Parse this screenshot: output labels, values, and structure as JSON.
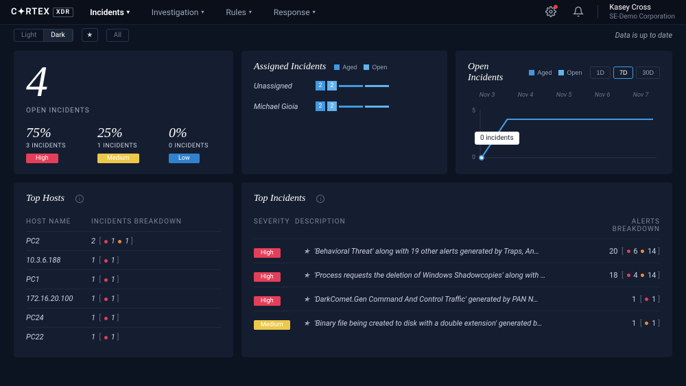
{
  "brand": {
    "name": "C✦RTEX",
    "suffix": "XDR"
  },
  "nav": {
    "items": [
      {
        "label": "Incidents",
        "active": true
      },
      {
        "label": "Investigation",
        "active": false
      },
      {
        "label": "Rules",
        "active": false
      },
      {
        "label": "Response",
        "active": false
      }
    ]
  },
  "user": {
    "name": "Kasey Cross",
    "org": "SE-Demo Corporation"
  },
  "subbar": {
    "light": "Light",
    "dark": "Dark",
    "all": "All",
    "status": "Data is up to date"
  },
  "colors": {
    "aged": "#4299e1",
    "open": "#63b3ed",
    "high": "#e43f5a",
    "medium": "#ecc94b",
    "low": "#3182ce",
    "dot_red": "#e43f5a",
    "dot_orange": "#ed8936"
  },
  "open_summary": {
    "count": "4",
    "label": "OPEN INCIDENTS",
    "severities": [
      {
        "pct": "75%",
        "count": "3 INCIDENTS",
        "badge": "High",
        "color": "#e43f5a"
      },
      {
        "pct": "25%",
        "count": "1 INCIDENTS",
        "badge": "Medium",
        "color": "#ecc94b"
      },
      {
        "pct": "0%",
        "count": "0 INCIDENTS",
        "badge": "Low",
        "color": "#3182ce"
      }
    ]
  },
  "assigned": {
    "title": "Assigned Incidents",
    "legend_aged": "Aged",
    "legend_open": "Open",
    "rows": [
      {
        "name": "Unassigned",
        "aged": "2",
        "open": "2"
      },
      {
        "name": "Michael Gioia",
        "aged": "2",
        "open": "2"
      }
    ]
  },
  "open_chart": {
    "title": "Open Incidents",
    "legend_aged": "Aged",
    "legend_open": "Open",
    "ranges": [
      "1D",
      "7D",
      "30D"
    ],
    "active_range": "7D",
    "x_labels": [
      "Nov 3",
      "Nov 4",
      "Nov 5",
      "Nov 6",
      "Nov 7"
    ],
    "y_max": 5,
    "y_tick": "5",
    "y_zero": "0",
    "series": [
      {
        "x": 0,
        "aged": 0,
        "open": 0
      },
      {
        "x": 15,
        "aged": 4,
        "open": 4
      },
      {
        "x": 35,
        "aged": 4,
        "open": 4
      },
      {
        "x": 55,
        "aged": 4,
        "open": 4
      },
      {
        "x": 75,
        "aged": 4,
        "open": 4
      },
      {
        "x": 100,
        "aged": 4,
        "open": 4
      }
    ],
    "tooltip": "0 incidents"
  },
  "top_hosts": {
    "title": "Top Hosts",
    "col_host": "HOST NAME",
    "col_inc": "INCIDENTS BREAKDOWN",
    "rows": [
      {
        "host": "PC2",
        "total": "2",
        "red": "1",
        "orange": "1"
      },
      {
        "host": "10.3.6.188",
        "total": "1",
        "red": "1",
        "orange": null
      },
      {
        "host": "PC1",
        "total": "1",
        "red": "1",
        "orange": null
      },
      {
        "host": "172.16.20.100",
        "total": "1",
        "red": "1",
        "orange": null
      },
      {
        "host": "PC24",
        "total": "1",
        "red": "1",
        "orange": null
      },
      {
        "host": "PC22",
        "total": "1",
        "red": "1",
        "orange": null
      }
    ]
  },
  "top_incidents": {
    "title": "Top Incidents",
    "col_sev": "SEVERITY",
    "col_desc": "DESCRIPTION",
    "col_alerts": "ALERTS BREAKDOWN",
    "rows": [
      {
        "sev": "High",
        "sev_color": "#e43f5a",
        "desc": "'Behavioral Threat' along with 19 other alerts generated by Traps, An…",
        "total": "20",
        "red": "6",
        "orange": "14"
      },
      {
        "sev": "High",
        "sev_color": "#e43f5a",
        "desc": "'Process requests the deletion of Windows Shadowcopies' along with …",
        "total": "18",
        "red": "4",
        "orange": "14"
      },
      {
        "sev": "High",
        "sev_color": "#e43f5a",
        "desc": "'DarkComet.Gen Command And Control Traffic' generated by PAN N…",
        "total": "1",
        "red": "1",
        "orange": null
      },
      {
        "sev": "Medium",
        "sev_color": "#ecc94b",
        "desc": "'Binary file being created to disk with a double extension' generated b…",
        "total": "1",
        "red": null,
        "orange": "1"
      }
    ]
  }
}
